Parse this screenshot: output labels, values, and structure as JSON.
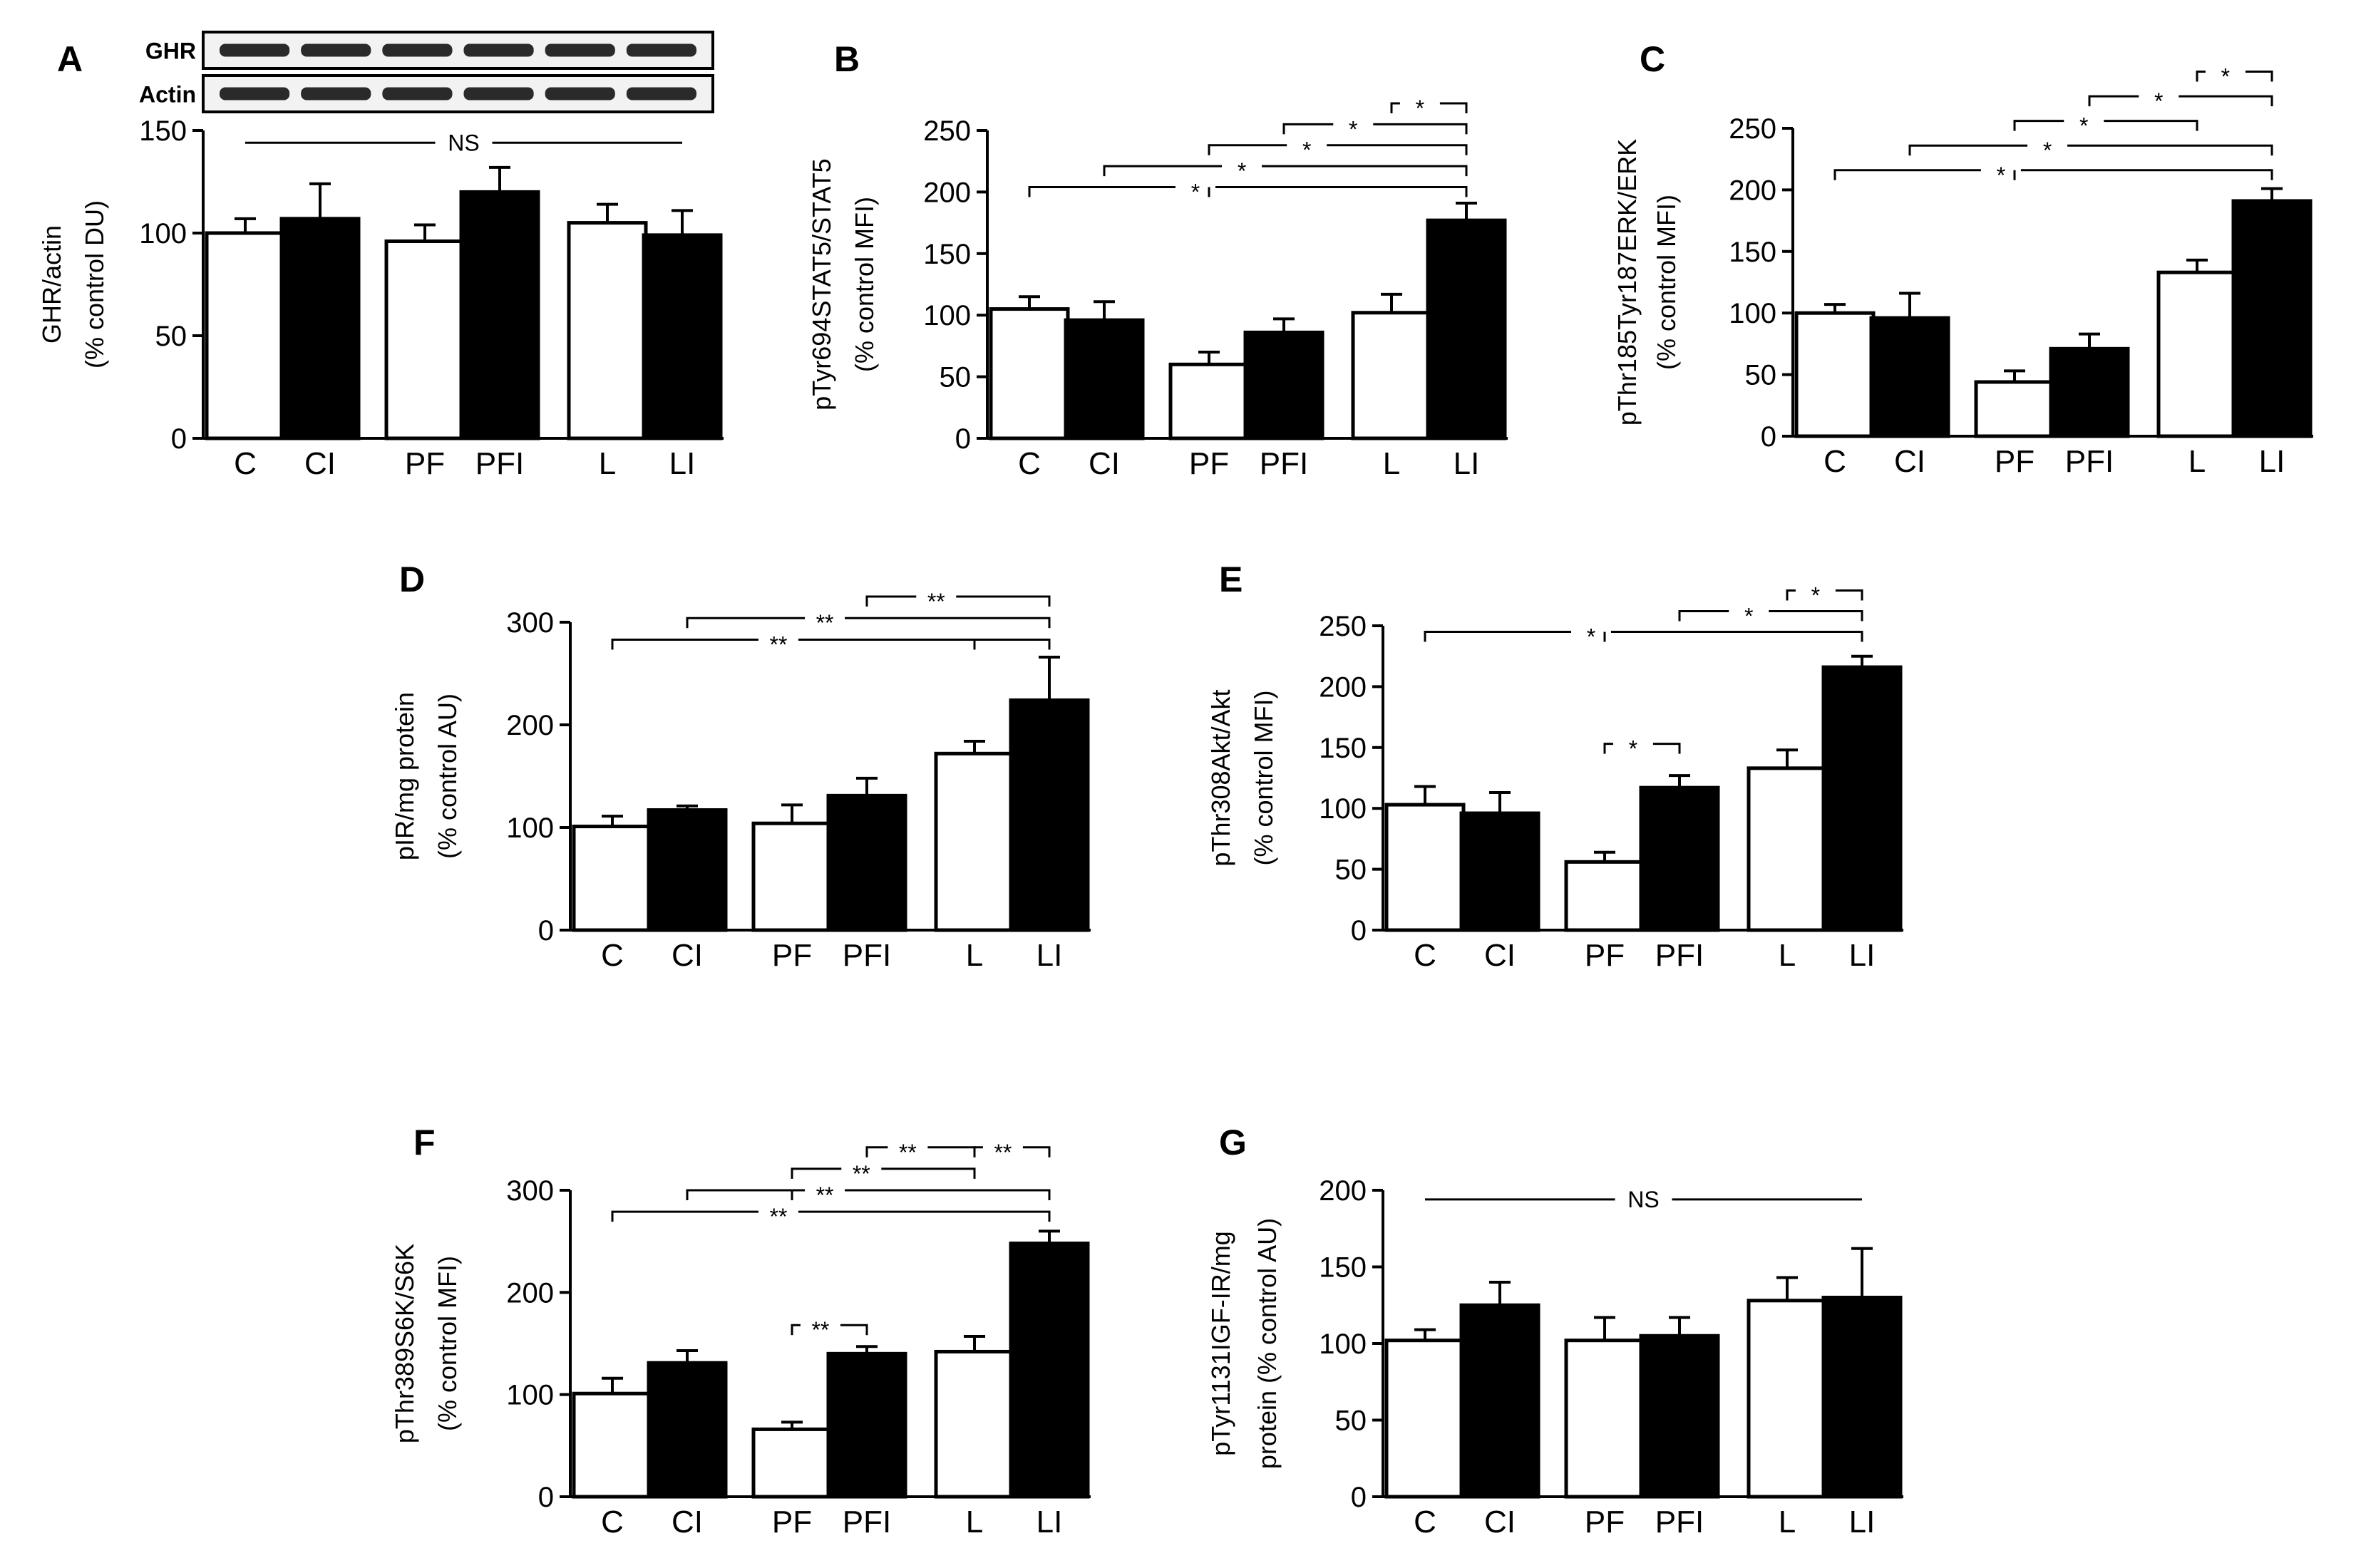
{
  "chart_data": [
    {
      "panel": "A",
      "type": "bar",
      "title": "A",
      "ylabel": [
        "GHR/actin",
        "(% control DU)"
      ],
      "ylim": [
        0,
        150
      ],
      "yticks": [
        0,
        50,
        100,
        150
      ],
      "categories": [
        "C",
        "CI",
        "PF",
        "PFI",
        "L",
        "LI"
      ],
      "values": [
        100,
        107,
        96,
        120,
        105,
        99
      ],
      "errors": [
        7,
        17,
        8,
        12,
        9,
        12
      ],
      "fills": [
        "white",
        "black",
        "white",
        "black",
        "white",
        "black"
      ],
      "annotations": [
        {
          "type": "line",
          "from": 0,
          "to": 5,
          "label": "NS",
          "level": 144
        }
      ],
      "blot": {
        "rows": [
          "GHR",
          "Actin"
        ]
      }
    },
    {
      "panel": "B",
      "type": "bar",
      "title": "B",
      "ylabel": [
        "pTyr694STAT5/STAT5",
        "(% control MFI)"
      ],
      "ylim": [
        0,
        250
      ],
      "yticks": [
        0,
        50,
        100,
        150,
        200,
        250
      ],
      "categories": [
        "C",
        "CI",
        "PF",
        "PFI",
        "L",
        "LI"
      ],
      "values": [
        105,
        96,
        60,
        86,
        102,
        177
      ],
      "errors": [
        10,
        15,
        10,
        11,
        15,
        14
      ],
      "fills": [
        "white",
        "black",
        "white",
        "black",
        "white",
        "black"
      ],
      "annotations": [
        {
          "type": "comparison",
          "from": 0,
          "to": 5,
          "label": "*",
          "level": 204,
          "ticks": [
            2
          ]
        },
        {
          "type": "comparison",
          "from": 1,
          "to": 5,
          "label": "*",
          "level": 221
        },
        {
          "type": "comparison",
          "from": 2,
          "to": 5,
          "label": "*",
          "level": 238
        },
        {
          "type": "comparison",
          "from": 3,
          "to": 5,
          "label": "*",
          "level": 255
        },
        {
          "type": "comparison",
          "from": 4,
          "to": 5,
          "label": "*",
          "level": 272
        }
      ]
    },
    {
      "panel": "C",
      "type": "bar",
      "title": "C",
      "ylabel": [
        "pThr185Tyr187ERK/ERK",
        "(% control MFI)"
      ],
      "ylim": [
        0,
        250
      ],
      "yticks": [
        0,
        50,
        100,
        150,
        200,
        250
      ],
      "categories": [
        "C",
        "CI",
        "PF",
        "PFI",
        "L",
        "LI"
      ],
      "values": [
        100,
        96,
        44,
        71,
        133,
        191
      ],
      "errors": [
        7,
        20,
        9,
        12,
        10,
        10
      ],
      "fills": [
        "white",
        "black",
        "white",
        "black",
        "white",
        "black"
      ],
      "annotations": [
        {
          "type": "comparison",
          "from": 0,
          "to": 5,
          "label": "*",
          "level": 216,
          "ticks": [
            2
          ]
        },
        {
          "type": "comparison",
          "from": 1,
          "to": 5,
          "label": "*",
          "level": 236
        },
        {
          "type": "comparison",
          "from": 2,
          "to": 4,
          "label": "*",
          "level": 256
        },
        {
          "type": "comparison",
          "from": 3,
          "to": 5,
          "label": "*",
          "level": 276
        },
        {
          "type": "comparison",
          "from": 4,
          "to": 5,
          "label": "*",
          "level": 296
        }
      ]
    },
    {
      "panel": "D",
      "type": "bar",
      "title": "D",
      "ylabel": [
        "pIR/mg protein",
        "(% control AU)"
      ],
      "ylim": [
        0,
        300
      ],
      "yticks": [
        0,
        100,
        200,
        300
      ],
      "categories": [
        "C",
        "CI",
        "PF",
        "PFI",
        "L",
        "LI"
      ],
      "values": [
        101,
        117,
        104,
        131,
        172,
        224
      ],
      "errors": [
        10,
        4,
        18,
        17,
        12,
        42
      ],
      "fills": [
        "white",
        "black",
        "white",
        "black",
        "white",
        "black"
      ],
      "annotations": [
        {
          "type": "comparison",
          "from": 0,
          "to": 5,
          "label": "**",
          "level": 283,
          "ticks": [
            4
          ]
        },
        {
          "type": "comparison",
          "from": 1,
          "to": 5,
          "label": "**",
          "level": 304
        },
        {
          "type": "comparison",
          "from": 3,
          "to": 5,
          "label": "**",
          "level": 325
        }
      ]
    },
    {
      "panel": "E",
      "type": "bar",
      "title": "E",
      "ylabel": [
        "pThr308Akt/Akt",
        "(% control MFI)"
      ],
      "ylim": [
        0,
        250
      ],
      "yticks": [
        0,
        50,
        100,
        150,
        200,
        250
      ],
      "categories": [
        "C",
        "CI",
        "PF",
        "PFI",
        "L",
        "LI"
      ],
      "values": [
        103,
        96,
        56,
        117,
        133,
        216
      ],
      "errors": [
        15,
        17,
        8,
        10,
        15,
        9
      ],
      "fills": [
        "white",
        "black",
        "white",
        "black",
        "white",
        "black"
      ],
      "annotations": [
        {
          "type": "comparison",
          "from": 0,
          "to": 5,
          "label": "*",
          "level": 245,
          "ticks": [
            2
          ]
        },
        {
          "type": "comparison",
          "from": 3,
          "to": 5,
          "label": "*",
          "level": 262
        },
        {
          "type": "comparison",
          "from": 4,
          "to": 5,
          "label": "*",
          "level": 279
        },
        {
          "type": "comparison",
          "from": 2,
          "to": 3,
          "label": "*",
          "level": 153
        }
      ]
    },
    {
      "panel": "F",
      "type": "bar",
      "title": "F",
      "ylabel": [
        "pThr389S6K/S6K",
        "(% control MFI)"
      ],
      "ylim": [
        0,
        300
      ],
      "yticks": [
        0,
        100,
        200,
        300
      ],
      "categories": [
        "C",
        "CI",
        "PF",
        "PFI",
        "L",
        "LI"
      ],
      "values": [
        101,
        131,
        66,
        140,
        142,
        248
      ],
      "errors": [
        15,
        12,
        7,
        7,
        15,
        12
      ],
      "fills": [
        "white",
        "black",
        "white",
        "black",
        "white",
        "black"
      ],
      "annotations": [
        {
          "type": "comparison",
          "from": 0,
          "to": 5,
          "label": "**",
          "level": 279
        },
        {
          "type": "comparison",
          "from": 1,
          "to": 5,
          "label": "**",
          "level": 300,
          "ticks": [
            2
          ]
        },
        {
          "type": "comparison",
          "from": 2,
          "to": 4,
          "label": "**",
          "level": 321
        },
        {
          "type": "comparison",
          "from": 3,
          "to": 4,
          "label": "**",
          "level": 342
        },
        {
          "type": "comparison",
          "from": 4,
          "to": 5,
          "label": "**",
          "level": 342
        },
        {
          "type": "comparison",
          "from": 2,
          "to": 3,
          "label": "**",
          "level": 168
        }
      ]
    },
    {
      "panel": "G",
      "type": "bar",
      "title": "G",
      "ylabel": [
        "pTyr1131IGF-IR/mg",
        "protein (% control AU)"
      ],
      "ylim": [
        0,
        200
      ],
      "yticks": [
        0,
        50,
        100,
        150,
        200
      ],
      "categories": [
        "C",
        "CI",
        "PF",
        "PFI",
        "L",
        "LI"
      ],
      "values": [
        102,
        125,
        102,
        105,
        128,
        130
      ],
      "errors": [
        7,
        15,
        15,
        12,
        15,
        32
      ],
      "fills": [
        "white",
        "black",
        "white",
        "black",
        "white",
        "black"
      ],
      "annotations": [
        {
          "type": "line",
          "from": 0,
          "to": 5,
          "label": "NS",
          "level": 194
        }
      ]
    }
  ]
}
